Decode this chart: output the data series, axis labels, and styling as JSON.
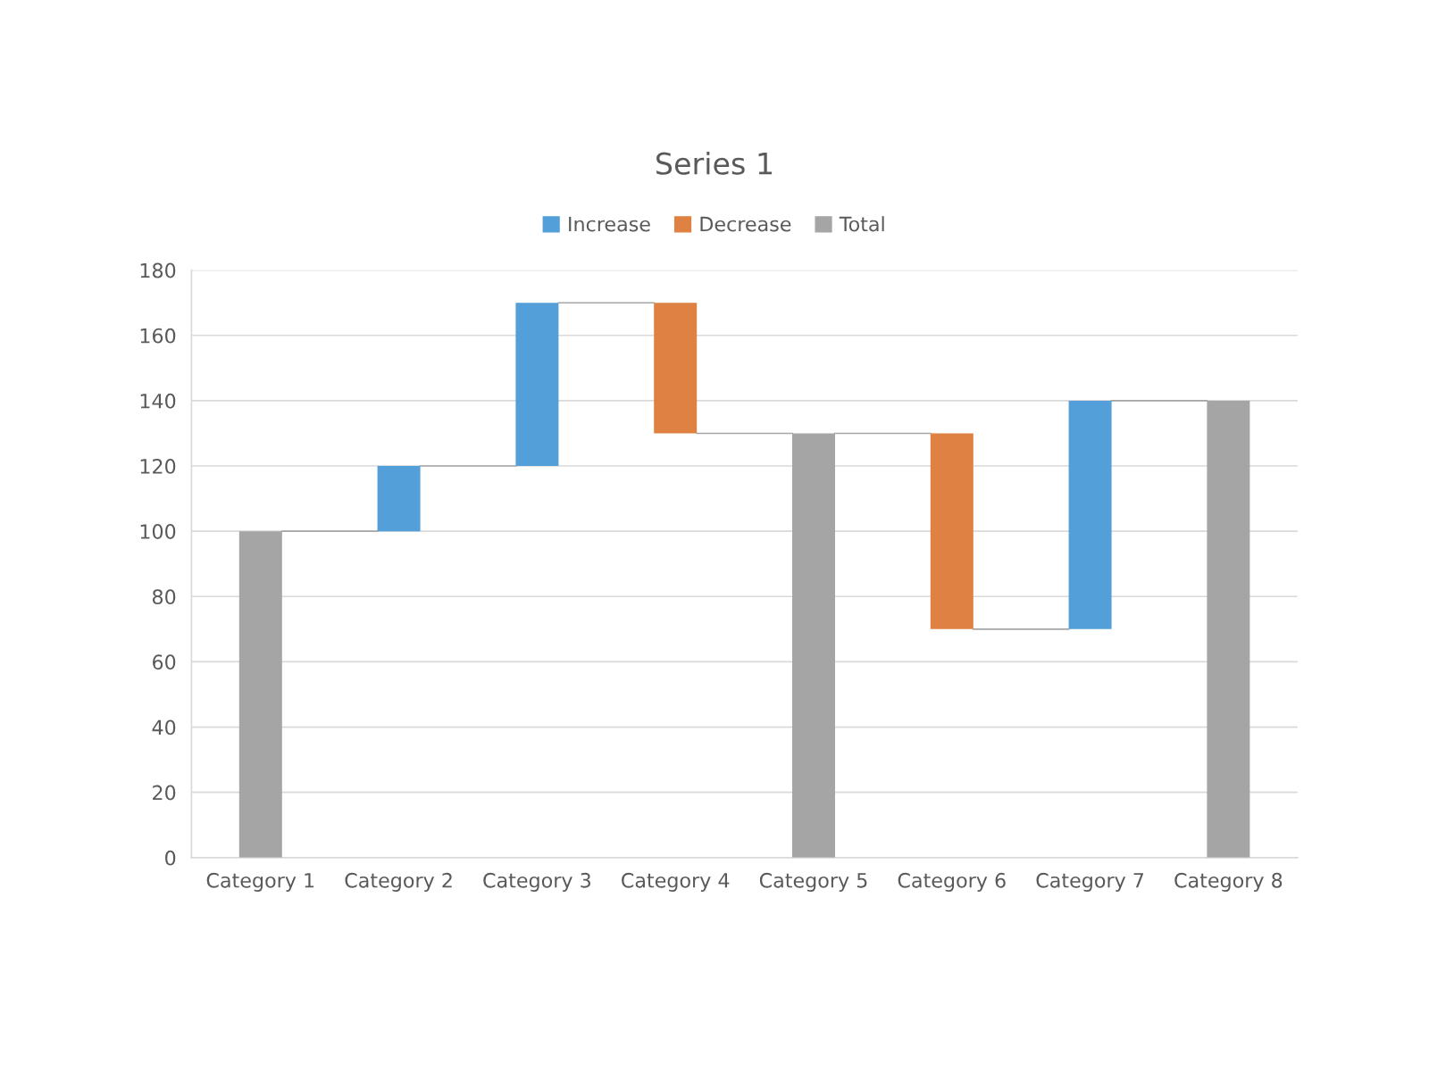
{
  "chart_data": {
    "type": "bar",
    "title": "Series 1",
    "categories": [
      "Category 1",
      "Category 2",
      "Category 3",
      "Category 4",
      "Category 5",
      "Category 6",
      "Category 7",
      "Category 8"
    ],
    "series": [
      {
        "name": "Increase",
        "color": "#529fd9",
        "values": [
          null,
          20,
          50,
          null,
          null,
          null,
          70,
          null
        ],
        "base": [
          null,
          100,
          120,
          null,
          null,
          null,
          70,
          null
        ]
      },
      {
        "name": "Decrease",
        "color": "#de8142",
        "values": [
          null,
          null,
          null,
          -40,
          null,
          -60,
          null,
          null
        ],
        "base": [
          null,
          null,
          null,
          170,
          null,
          130,
          null,
          null
        ]
      },
      {
        "name": "Total",
        "color": "#a5a5a5",
        "values": [
          100,
          null,
          null,
          null,
          130,
          null,
          null,
          140
        ],
        "base": [
          0,
          null,
          null,
          null,
          0,
          null,
          null,
          0
        ]
      }
    ],
    "ylim": [
      0,
      180
    ],
    "yticks": [
      0,
      20,
      40,
      60,
      80,
      100,
      120,
      140,
      160,
      180
    ],
    "grid": "y",
    "legend": "top"
  }
}
